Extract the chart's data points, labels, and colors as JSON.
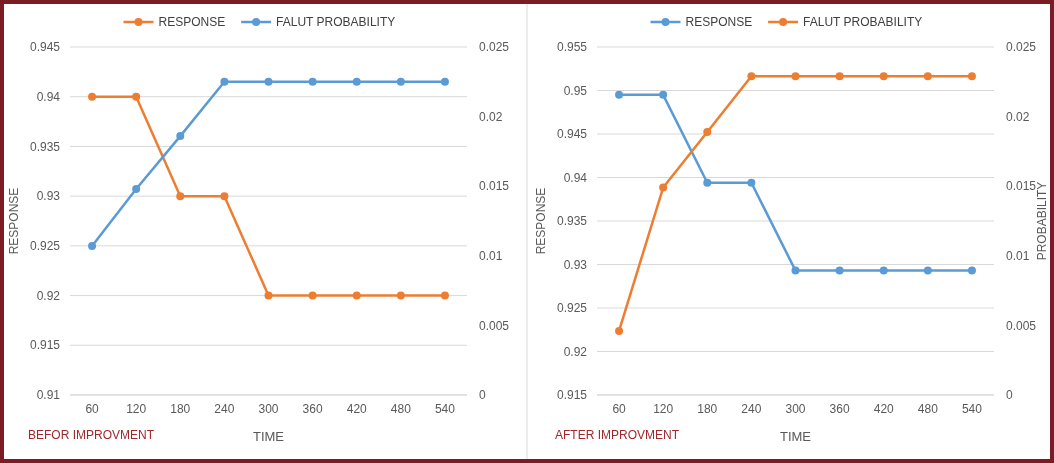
{
  "chart_data": [
    {
      "type": "line",
      "categories": [
        "60",
        "120",
        "180",
        "240",
        "300",
        "360",
        "420",
        "480",
        "540"
      ],
      "xlabel": "TIME",
      "ylabel": "RESPONSE",
      "ylim": [
        0.91,
        0.945
      ],
      "yticks": [
        0.91,
        0.915,
        0.92,
        0.925,
        0.93,
        0.935,
        0.94,
        0.945
      ],
      "y2lim": [
        0,
        0.025
      ],
      "y2ticks": [
        0,
        0.005,
        0.01,
        0.015,
        0.02,
        0.025
      ],
      "grid": "y",
      "legend": "top",
      "marker": "circle",
      "line_style": "solid",
      "annotations": [
        "BEFOR IMPROVMENT"
      ],
      "series": [
        {
          "name": "RESPONSE",
          "color": "#ed7d31",
          "values": [
            0.94,
            0.94,
            0.93,
            0.93,
            0.92,
            0.92,
            0.92,
            0.92,
            0.92
          ]
        },
        {
          "name": "FALUT PROBABILITY",
          "color": "#5b9bd5",
          "axis": "y2",
          "values": [
            0.0107,
            0.0148,
            0.0186,
            0.0225,
            0.0225,
            0.0225,
            0.0225,
            0.0225,
            0.0225
          ]
        }
      ]
    },
    {
      "type": "line",
      "categories": [
        "60",
        "120",
        "180",
        "240",
        "300",
        "360",
        "420",
        "480",
        "540"
      ],
      "xlabel": "TIME",
      "ylabel": "RESPONSE",
      "y2label": "PROBABILITY",
      "ylim": [
        0.915,
        0.955
      ],
      "yticks": [
        0.915,
        0.92,
        0.925,
        0.93,
        0.935,
        0.94,
        0.945,
        0.95,
        0.955
      ],
      "y2lim": [
        0,
        0.025
      ],
      "y2ticks": [
        0,
        0.005,
        0.01,
        0.015,
        0.02,
        0.025
      ],
      "grid": "y",
      "legend": "top",
      "marker": "circle",
      "line_style": "solid",
      "annotations": [
        "AFTER IMPROVMENT"
      ],
      "series": [
        {
          "name": "RESPONSE",
          "color": "#5b9bd5",
          "values": [
            0.9495,
            0.9495,
            0.9394,
            0.9394,
            0.9293,
            0.9293,
            0.9293,
            0.9293,
            0.9293
          ]
        },
        {
          "name": "FALUT PROBABILITY",
          "color": "#ed7d31",
          "axis": "y2",
          "values": [
            0.0046,
            0.0149,
            0.0189,
            0.0229,
            0.0229,
            0.0229,
            0.0229,
            0.0229,
            0.0229
          ]
        }
      ]
    }
  ]
}
